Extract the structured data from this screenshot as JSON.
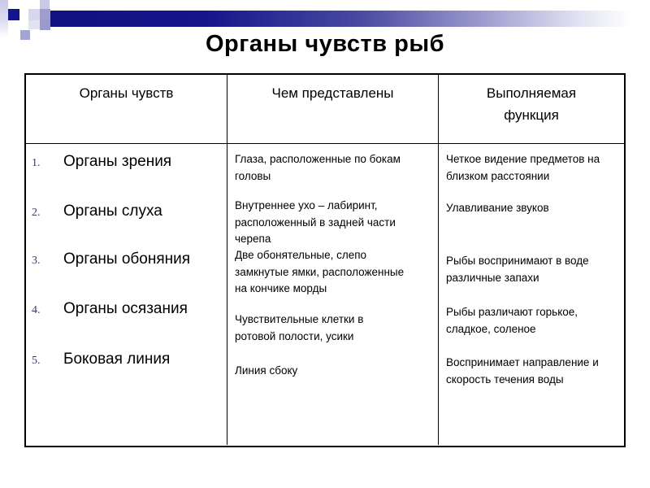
{
  "title": "Органы чувств рыб",
  "table": {
    "headers": [
      "Органы чувств",
      "Чем представлены",
      "Выполняемая функция"
    ],
    "rows": [
      {
        "num": "1.",
        "organ": "Органы зрения",
        "representation": "Глаза, расположенные по бокам\nголовы",
        "function": "Четкое видение предметов на\nблизком расстоянии"
      },
      {
        "num": "2.",
        "organ": "Органы слуха",
        "representation": "Внутреннее ухо – лабиринт,\nрасположенный в задней части\nчерепа",
        "function": "Улавливание звуков"
      },
      {
        "num": "3.",
        "organ": "Органы обоняния",
        "representation": "Две обонятельные, слепо\nзамкнутые ямки, расположенные\nна кончике морды",
        "function": "Рыбы воспринимают в воде\nразличные запахи"
      },
      {
        "num": "4.",
        "organ": "Органы осязания",
        "representation": "Чувствительные клетки в\nротовой полости, усики",
        "function": "Рыбы различают горькое,\nсладкое, соленое"
      },
      {
        "num": "5.",
        "organ": "Боковая линия",
        "representation": "Линия сбоку",
        "function": "Воспринимает направление и\nскорость течения воды"
      }
    ]
  },
  "colors": {
    "bar_navy": "#14148c",
    "accent_lavender": "#9999cc",
    "number_blue": "#3a3a6a",
    "table_border": "#000000",
    "background": "#ffffff"
  }
}
